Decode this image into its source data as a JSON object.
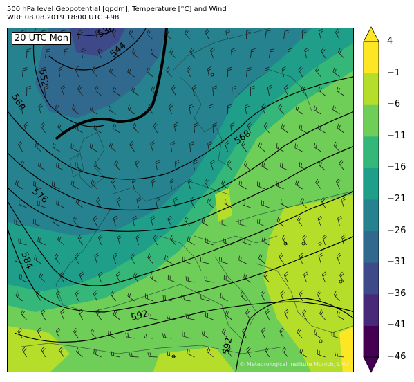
{
  "header": {
    "line1": "500 hPa level Geopotential [gpdm], Temperature [°C] and Wind",
    "line2": "WRF 08.08.2019 18:00 UTC +98"
  },
  "time_label": "20 UTC Mon",
  "credit": "© Meteorological Institute Munich, LMU",
  "contours": [
    {
      "label": "536"
    },
    {
      "label": "544"
    },
    {
      "label": "552"
    },
    {
      "label": "560"
    },
    {
      "label": "568"
    },
    {
      "label": "576"
    },
    {
      "label": "584"
    },
    {
      "label": "592"
    },
    {
      "label": "592"
    }
  ],
  "colorbar": {
    "unit": "°C",
    "ticks": [
      "4",
      "−1",
      "−6",
      "−11",
      "−16",
      "−21",
      "−26",
      "−31",
      "−36",
      "−41",
      "−46"
    ],
    "colors": [
      "#440154",
      "#482878",
      "#3e4989",
      "#31688e",
      "#26828e",
      "#1f9e89",
      "#35b779",
      "#6ece58",
      "#b5de2b",
      "#fde725"
    ]
  }
}
